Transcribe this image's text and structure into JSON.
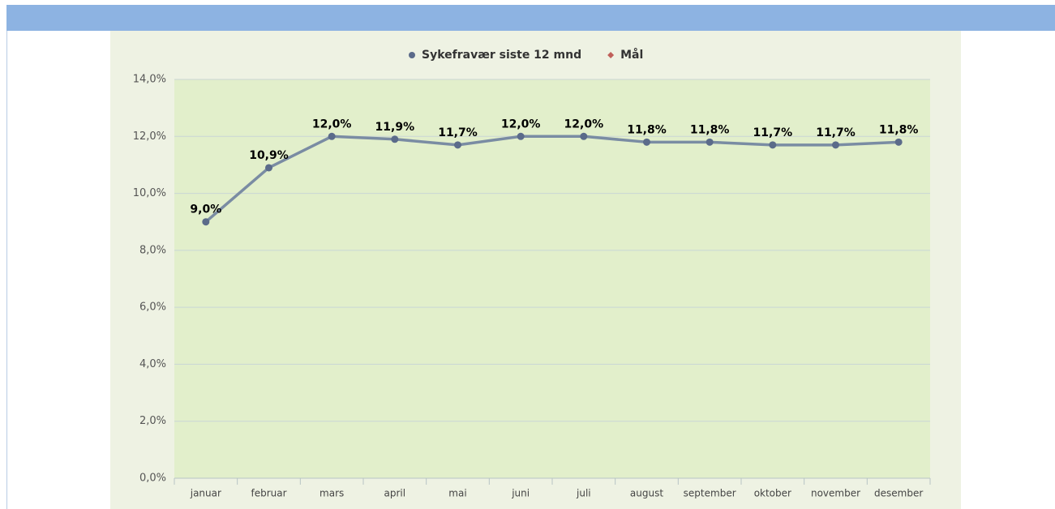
{
  "chart_data": {
    "type": "line",
    "categories": [
      "januar",
      "februar",
      "mars",
      "april",
      "mai",
      "juni",
      "juli",
      "august",
      "september",
      "oktober",
      "november",
      "desember"
    ],
    "series": [
      {
        "name": "Sykefravær siste 12 mnd",
        "color": "#5b6b8a",
        "values": [
          9.0,
          10.9,
          12.0,
          11.9,
          11.7,
          12.0,
          12.0,
          11.8,
          11.8,
          11.7,
          11.7,
          11.8
        ],
        "value_labels": [
          "9,0%",
          "10,9%",
          "12,0%",
          "11,9%",
          "11,7%",
          "12,0%",
          "12,0%",
          "11,8%",
          "11,8%",
          "11,7%",
          "11,7%",
          "11,8%"
        ]
      },
      {
        "name": "Mål",
        "color": "#c0605a",
        "values": [
          null,
          null,
          null,
          null,
          null,
          null,
          null,
          null,
          null,
          null,
          null,
          null
        ]
      }
    ],
    "ylim": [
      0,
      14
    ],
    "yticks": [
      {
        "value": 0,
        "label": "0,0%"
      },
      {
        "value": 2,
        "label": "2,0%"
      },
      {
        "value": 4,
        "label": "4,0%"
      },
      {
        "value": 6,
        "label": "6,0%"
      },
      {
        "value": 8,
        "label": "8,0%"
      },
      {
        "value": 10,
        "label": "10,0%"
      },
      {
        "value": 12,
        "label": "12,0%"
      },
      {
        "value": 14,
        "label": "14,0%"
      }
    ],
    "grid": true,
    "legend": "top"
  }
}
